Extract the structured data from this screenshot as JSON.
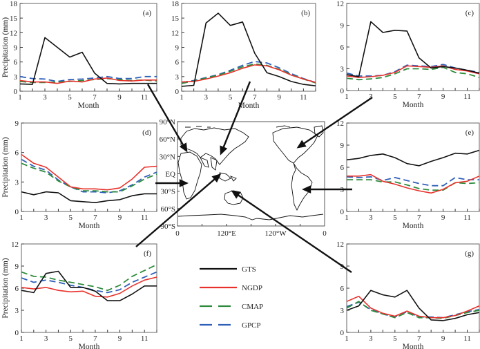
{
  "figure": {
    "legend": [
      {
        "name": "GTS",
        "color": "#111111",
        "dash": "solid"
      },
      {
        "name": "NGDP",
        "color": "#e8312b",
        "dash": "solid"
      },
      {
        "name": "CMAP",
        "color": "#2e8b3c",
        "dash": "dashed"
      },
      {
        "name": "GPCP",
        "color": "#2f5fb8",
        "dash": "dashed"
      }
    ],
    "map": {
      "lat_labels": [
        "90°N",
        "60°N",
        "30°N",
        "EQ",
        "30°S",
        "60°S",
        "90°S"
      ],
      "lon_labels": [
        "0",
        "120°E",
        "120°W",
        "0"
      ]
    }
  },
  "chart_data": [
    {
      "type": "line",
      "panel": "(a)",
      "xlabel": "Month",
      "ylabel": "Precipitation (mm)",
      "x": [
        1,
        2,
        3,
        4,
        5,
        6,
        7,
        8,
        9,
        10,
        11,
        12
      ],
      "xticks": [
        1,
        3,
        5,
        7,
        9,
        11
      ],
      "ylim": [
        0,
        18
      ],
      "yticks": [
        0,
        3,
        6,
        9,
        12,
        15,
        18
      ],
      "show_ylabel": true,
      "series": [
        {
          "name": "GTS",
          "values": [
            1.5,
            1.4,
            11.0,
            9.0,
            7.0,
            8.0,
            3.7,
            1.6,
            1.5,
            1.6,
            1.6,
            1.6
          ]
        },
        {
          "name": "NGDP",
          "values": [
            2.2,
            1.9,
            1.9,
            1.6,
            2.1,
            1.9,
            2.5,
            2.7,
            2.2,
            2.1,
            2.3,
            2.3
          ]
        },
        {
          "name": "CMAP",
          "values": [
            2.0,
            1.8,
            1.8,
            1.9,
            2.0,
            2.2,
            2.4,
            2.6,
            2.4,
            2.2,
            2.3,
            2.1
          ]
        },
        {
          "name": "GPCP",
          "values": [
            3.0,
            2.6,
            2.5,
            2.0,
            2.4,
            2.5,
            2.7,
            3.0,
            2.6,
            2.6,
            3.0,
            3.0
          ]
        }
      ]
    },
    {
      "type": "line",
      "panel": "(b)",
      "xlabel": "Month",
      "ylabel": "",
      "x": [
        1,
        2,
        3,
        4,
        5,
        6,
        7,
        8,
        9,
        10,
        11,
        12
      ],
      "xticks": [
        1,
        3,
        5,
        7,
        9,
        11
      ],
      "ylim": [
        0,
        18
      ],
      "yticks": [
        0,
        3,
        6,
        9,
        12,
        15,
        18
      ],
      "show_ylabel": false,
      "series": [
        {
          "name": "GTS",
          "values": [
            1.0,
            1.2,
            14.0,
            16.0,
            13.5,
            14.2,
            7.8,
            3.8,
            3.0,
            2.0,
            1.4,
            1.1
          ]
        },
        {
          "name": "NGDP",
          "values": [
            1.9,
            2.0,
            2.5,
            3.1,
            3.8,
            4.7,
            5.4,
            5.2,
            4.4,
            3.3,
            2.5,
            1.8
          ]
        },
        {
          "name": "CMAP",
          "values": [
            1.6,
            2.1,
            2.7,
            3.3,
            4.1,
            5.0,
            5.6,
            5.3,
            4.5,
            3.4,
            2.5,
            1.7
          ]
        },
        {
          "name": "GPCP",
          "values": [
            1.8,
            2.2,
            2.8,
            3.4,
            4.3,
            5.3,
            6.1,
            5.8,
            4.8,
            3.6,
            2.6,
            1.8
          ]
        }
      ]
    },
    {
      "type": "line",
      "panel": "(c)",
      "xlabel": "Month",
      "ylabel": "",
      "x": [
        1,
        2,
        3,
        4,
        5,
        6,
        7,
        8,
        9,
        10,
        11,
        12
      ],
      "xticks": [
        1,
        3,
        5,
        7,
        9,
        11
      ],
      "ylim": [
        0,
        12
      ],
      "yticks": [
        0,
        3,
        6,
        9,
        12
      ],
      "show_ylabel": false,
      "series": [
        {
          "name": "GTS",
          "values": [
            2.2,
            1.9,
            9.5,
            8.0,
            8.3,
            8.2,
            4.5,
            3.1,
            3.3,
            3.1,
            2.8,
            2.4
          ]
        },
        {
          "name": "NGDP",
          "values": [
            2.0,
            1.8,
            1.9,
            2.1,
            2.5,
            3.4,
            3.3,
            3.2,
            3.4,
            2.9,
            2.7,
            2.3
          ]
        },
        {
          "name": "CMAP",
          "values": [
            1.7,
            1.5,
            1.6,
            1.8,
            2.3,
            3.0,
            3.0,
            2.9,
            3.2,
            2.5,
            2.3,
            1.8
          ]
        },
        {
          "name": "GPCP",
          "values": [
            2.4,
            2.0,
            2.0,
            2.1,
            2.6,
            3.5,
            3.4,
            3.3,
            3.6,
            3.1,
            2.8,
            2.5
          ]
        }
      ]
    },
    {
      "type": "line",
      "panel": "(d)",
      "xlabel": "Month",
      "ylabel": "Precipitation (mm)",
      "x": [
        1,
        2,
        3,
        4,
        5,
        6,
        7,
        8,
        9,
        10,
        11,
        12
      ],
      "xticks": [
        1,
        3,
        5,
        7,
        9,
        11
      ],
      "ylim": [
        0,
        9
      ],
      "yticks": [
        0,
        3,
        6,
        9
      ],
      "show_ylabel": true,
      "series": [
        {
          "name": "GTS",
          "values": [
            2.0,
            1.7,
            2.0,
            1.9,
            1.1,
            1.0,
            0.9,
            1.1,
            1.2,
            1.6,
            1.8,
            1.8
          ]
        },
        {
          "name": "NGDP",
          "values": [
            5.8,
            4.9,
            4.5,
            3.5,
            2.5,
            2.3,
            2.3,
            2.2,
            2.4,
            3.3,
            4.5,
            4.6
          ]
        },
        {
          "name": "CMAP",
          "values": [
            4.9,
            4.4,
            4.0,
            3.1,
            2.5,
            2.1,
            2.1,
            2.0,
            2.0,
            2.6,
            3.3,
            3.8
          ]
        },
        {
          "name": "GPCP",
          "values": [
            5.3,
            4.6,
            4.2,
            3.2,
            2.5,
            2.0,
            2.0,
            1.9,
            2.1,
            2.7,
            3.5,
            4.0
          ]
        }
      ]
    },
    {
      "type": "line",
      "panel": "(e)",
      "xlabel": "Month",
      "ylabel": "",
      "x": [
        1,
        2,
        3,
        4,
        5,
        6,
        7,
        8,
        9,
        10,
        11,
        12
      ],
      "xticks": [
        1,
        3,
        5,
        7,
        9,
        11
      ],
      "ylim": [
        0,
        12
      ],
      "yticks": [
        0,
        3,
        6,
        9,
        12
      ],
      "show_ylabel": false,
      "series": [
        {
          "name": "GTS",
          "values": [
            7.0,
            7.2,
            7.6,
            7.8,
            7.3,
            6.5,
            6.2,
            6.8,
            7.3,
            7.9,
            7.8,
            8.3
          ]
        },
        {
          "name": "NGDP",
          "values": [
            4.8,
            4.8,
            5.0,
            4.1,
            3.7,
            3.2,
            2.8,
            2.5,
            3.0,
            3.9,
            4.1,
            4.8
          ]
        },
        {
          "name": "CMAP",
          "values": [
            4.3,
            4.3,
            4.3,
            4.0,
            4.0,
            3.6,
            3.1,
            2.9,
            2.9,
            3.9,
            3.8,
            3.9
          ]
        },
        {
          "name": "GPCP",
          "values": [
            4.7,
            4.6,
            4.7,
            4.2,
            4.6,
            4.2,
            3.8,
            3.5,
            3.5,
            4.6,
            4.3,
            4.3
          ]
        }
      ]
    },
    {
      "type": "line",
      "panel": "(f)",
      "xlabel": "Month",
      "ylabel": "Precipitation (mm)",
      "x": [
        1,
        2,
        3,
        4,
        5,
        6,
        7,
        8,
        9,
        10,
        11,
        12
      ],
      "xticks": [
        1,
        3,
        5,
        7,
        9,
        11
      ],
      "ylim": [
        0,
        12
      ],
      "yticks": [
        0,
        3,
        6,
        9,
        12
      ],
      "show_ylabel": true,
      "series": [
        {
          "name": "GTS",
          "values": [
            5.7,
            5.4,
            8.0,
            8.3,
            6.1,
            6.1,
            5.6,
            4.3,
            4.3,
            5.2,
            6.3,
            6.3
          ]
        },
        {
          "name": "NGDP",
          "values": [
            6.1,
            5.9,
            6.1,
            5.7,
            5.5,
            5.6,
            4.9,
            4.8,
            5.3,
            6.3,
            7.1,
            7.5
          ]
        },
        {
          "name": "CMAP",
          "values": [
            8.2,
            7.6,
            7.5,
            7.1,
            6.8,
            6.5,
            6.2,
            5.7,
            6.4,
            7.6,
            8.4,
            9.2
          ]
        },
        {
          "name": "GPCP",
          "values": [
            7.4,
            6.8,
            7.1,
            6.8,
            6.4,
            6.1,
            5.7,
            5.4,
            5.8,
            6.8,
            7.5,
            8.2
          ]
        }
      ]
    },
    {
      "type": "line",
      "panel": "(g)",
      "xlabel": "Month",
      "ylabel": "",
      "x": [
        1,
        2,
        3,
        4,
        5,
        6,
        7,
        8,
        9,
        10,
        11,
        12
      ],
      "xticks": [
        1,
        3,
        5,
        7,
        9,
        11
      ],
      "ylim": [
        0,
        12
      ],
      "yticks": [
        0,
        3,
        6,
        9,
        12
      ],
      "show_ylabel": false,
      "series": [
        {
          "name": "GTS",
          "values": [
            3.0,
            3.6,
            5.7,
            5.1,
            4.8,
            5.7,
            3.3,
            1.7,
            1.6,
            1.9,
            2.4,
            2.7
          ]
        },
        {
          "name": "NGDP",
          "values": [
            4.2,
            4.9,
            3.3,
            2.6,
            2.2,
            2.9,
            2.2,
            2.0,
            2.0,
            2.3,
            2.9,
            3.6
          ]
        },
        {
          "name": "CMAP",
          "values": [
            3.3,
            4.2,
            3.0,
            2.5,
            2.0,
            2.7,
            2.0,
            2.0,
            1.9,
            2.3,
            2.7,
            3.0
          ]
        },
        {
          "name": "GPCP",
          "values": [
            3.5,
            4.1,
            3.1,
            2.5,
            2.1,
            2.8,
            2.1,
            2.1,
            2.0,
            2.4,
            2.8,
            3.1
          ]
        }
      ]
    }
  ]
}
